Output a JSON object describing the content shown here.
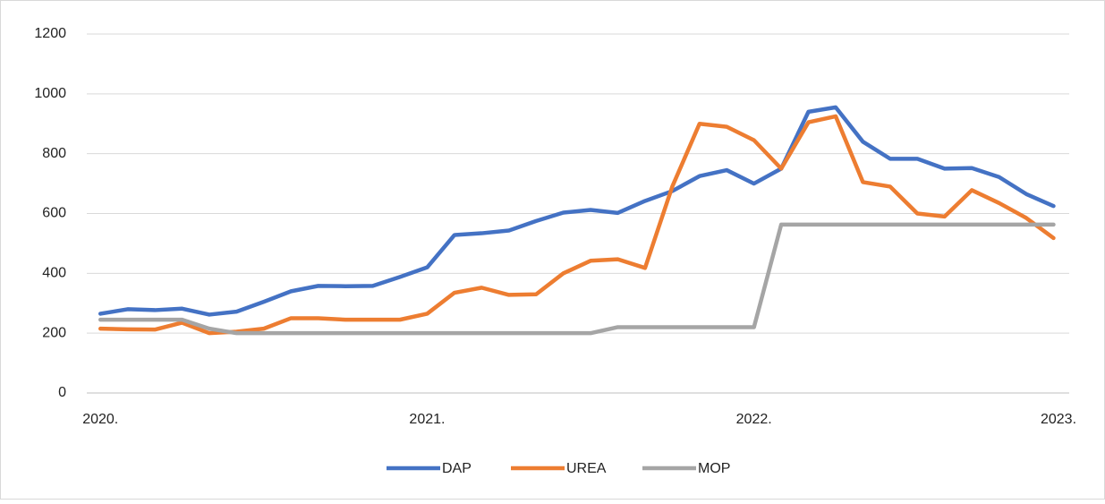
{
  "chart_data": {
    "type": "line",
    "x": [
      0,
      1,
      2,
      3,
      4,
      5,
      6,
      7,
      8,
      9,
      10,
      11,
      12,
      13,
      14,
      15,
      16,
      17,
      18,
      19,
      20,
      21,
      22,
      23,
      24,
      25,
      26,
      27,
      28,
      29,
      30,
      31,
      32,
      33,
      34,
      35
    ],
    "series": [
      {
        "name": "DAP",
        "color": "#4472c4",
        "values": [
          265,
          280,
          277,
          282,
          262,
          272,
          305,
          340,
          358,
          357,
          358,
          388,
          420,
          528,
          534,
          543,
          575,
          603,
          612,
          602,
          642,
          675,
          725,
          745,
          700,
          750,
          940,
          955,
          840,
          783,
          783,
          750,
          752,
          722,
          665,
          625
        ]
      },
      {
        "name": "UREA",
        "color": "#ed7d31",
        "values": [
          215,
          213,
          212,
          235,
          200,
          205,
          215,
          250,
          250,
          245,
          245,
          245,
          265,
          335,
          352,
          328,
          330,
          400,
          442,
          447,
          418,
          690,
          900,
          890,
          845,
          750,
          905,
          925,
          705,
          690,
          600,
          590,
          678,
          635,
          585,
          518
        ]
      },
      {
        "name": "MOP",
        "color": "#a5a5a5",
        "values": [
          245,
          245,
          245,
          245,
          215,
          200,
          200,
          200,
          200,
          200,
          200,
          200,
          200,
          200,
          200,
          200,
          200,
          200,
          200,
          220,
          220,
          220,
          220,
          220,
          220,
          563,
          563,
          563,
          563,
          563,
          563,
          563,
          563,
          563,
          563,
          563
        ]
      }
    ],
    "xlim": [
      -0.5,
      36.2
    ],
    "xticks": [
      {
        "value": 0,
        "label": "2020."
      },
      {
        "value": 12,
        "label": "2021."
      },
      {
        "value": 24,
        "label": "2022."
      },
      {
        "value": 36,
        "label": "2023."
      }
    ],
    "ylim": [
      0,
      1200
    ],
    "yticks": [
      0,
      200,
      400,
      600,
      800,
      1000,
      1200
    ],
    "grid": true,
    "legend": "bottom"
  }
}
